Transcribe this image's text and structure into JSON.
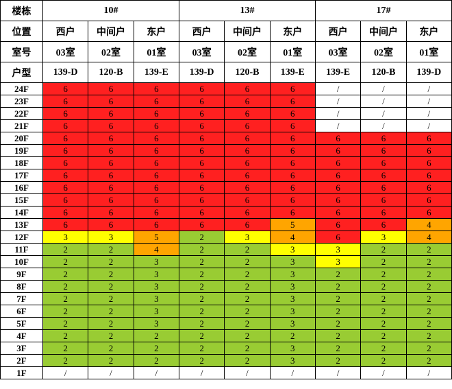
{
  "chart_data": {
    "type": "heatmap",
    "title": "",
    "corner_labels": [
      "楼栋",
      "位置",
      "室号",
      "户型"
    ],
    "buildings": [
      "10#",
      "13#",
      "17#"
    ],
    "positions": [
      "西户",
      "中间户",
      "东户",
      "西户",
      "中间户",
      "东户",
      "西户",
      "中间户",
      "东户"
    ],
    "rooms": [
      "03室",
      "02室",
      "01室",
      "03室",
      "02室",
      "01室",
      "03室",
      "02室",
      "01室"
    ],
    "unit_types": [
      "139-D",
      "120-B",
      "139-E",
      "139-D",
      "120-B",
      "139-E",
      "139-E",
      "120-B",
      "139-D"
    ],
    "palette": {
      "red": "#ff2020",
      "orange": "#ffa500",
      "yellow": "#ffff00",
      "green": "#99cc33",
      "white": "#ffffff"
    },
    "rows": [
      {
        "floor": "24F",
        "values": [
          "6",
          "6",
          "6",
          "6",
          "6",
          "6",
          "/",
          "/",
          "/"
        ],
        "colors": [
          "red",
          "red",
          "red",
          "red",
          "red",
          "red",
          "white",
          "white",
          "white"
        ]
      },
      {
        "floor": "23F",
        "values": [
          "6",
          "6",
          "6",
          "6",
          "6",
          "6",
          "/",
          "/",
          "/"
        ],
        "colors": [
          "red",
          "red",
          "red",
          "red",
          "red",
          "red",
          "white",
          "white",
          "white"
        ]
      },
      {
        "floor": "22F",
        "values": [
          "6",
          "6",
          "6",
          "6",
          "6",
          "6",
          "/",
          "/",
          "/"
        ],
        "colors": [
          "red",
          "red",
          "red",
          "red",
          "red",
          "red",
          "white",
          "white",
          "white"
        ]
      },
      {
        "floor": "21F",
        "values": [
          "6",
          "6",
          "6",
          "6",
          "6",
          "6",
          "/",
          "/",
          "/"
        ],
        "colors": [
          "red",
          "red",
          "red",
          "red",
          "red",
          "red",
          "white",
          "white",
          "white"
        ]
      },
      {
        "floor": "20F",
        "values": [
          "6",
          "6",
          "6",
          "6",
          "6",
          "6",
          "6",
          "6",
          "6"
        ],
        "colors": [
          "red",
          "red",
          "red",
          "red",
          "red",
          "red",
          "red",
          "red",
          "red"
        ]
      },
      {
        "floor": "19F",
        "values": [
          "6",
          "6",
          "6",
          "6",
          "6",
          "6",
          "6",
          "6",
          "6"
        ],
        "colors": [
          "red",
          "red",
          "red",
          "red",
          "red",
          "red",
          "red",
          "red",
          "red"
        ]
      },
      {
        "floor": "18F",
        "values": [
          "6",
          "6",
          "6",
          "6",
          "6",
          "6",
          "6",
          "6",
          "6"
        ],
        "colors": [
          "red",
          "red",
          "red",
          "red",
          "red",
          "red",
          "red",
          "red",
          "red"
        ]
      },
      {
        "floor": "17F",
        "values": [
          "6",
          "6",
          "6",
          "6",
          "6",
          "6",
          "6",
          "6",
          "6"
        ],
        "colors": [
          "red",
          "red",
          "red",
          "red",
          "red",
          "red",
          "red",
          "red",
          "red"
        ]
      },
      {
        "floor": "16F",
        "values": [
          "6",
          "6",
          "6",
          "6",
          "6",
          "6",
          "6",
          "6",
          "6"
        ],
        "colors": [
          "red",
          "red",
          "red",
          "red",
          "red",
          "red",
          "red",
          "red",
          "red"
        ]
      },
      {
        "floor": "15F",
        "values": [
          "6",
          "6",
          "6",
          "6",
          "6",
          "6",
          "6",
          "6",
          "6"
        ],
        "colors": [
          "red",
          "red",
          "red",
          "red",
          "red",
          "red",
          "red",
          "red",
          "red"
        ]
      },
      {
        "floor": "14F",
        "values": [
          "6",
          "6",
          "6",
          "6",
          "6",
          "6",
          "6",
          "6",
          "6"
        ],
        "colors": [
          "red",
          "red",
          "red",
          "red",
          "red",
          "red",
          "red",
          "red",
          "red"
        ]
      },
      {
        "floor": "13F",
        "values": [
          "6",
          "6",
          "6",
          "6",
          "6",
          "5",
          "6",
          "6",
          "4"
        ],
        "colors": [
          "red",
          "red",
          "red",
          "red",
          "red",
          "orange",
          "red",
          "red",
          "orange"
        ]
      },
      {
        "floor": "12F",
        "values": [
          "3",
          "3",
          "5",
          "2",
          "3",
          "4",
          "6",
          "3",
          "4"
        ],
        "colors": [
          "yellow",
          "yellow",
          "orange",
          "green",
          "yellow",
          "orange",
          "red",
          "yellow",
          "orange"
        ]
      },
      {
        "floor": "11F",
        "values": [
          "2",
          "2",
          "4",
          "2",
          "2",
          "3",
          "3",
          "2",
          "2"
        ],
        "colors": [
          "green",
          "green",
          "orange",
          "green",
          "green",
          "yellow",
          "yellow",
          "green",
          "green"
        ]
      },
      {
        "floor": "10F",
        "values": [
          "2",
          "2",
          "3",
          "2",
          "2",
          "3",
          "3",
          "2",
          "2"
        ],
        "colors": [
          "green",
          "green",
          "green",
          "green",
          "green",
          "green",
          "yellow",
          "green",
          "green"
        ]
      },
      {
        "floor": "9F",
        "values": [
          "2",
          "2",
          "3",
          "2",
          "2",
          "3",
          "2",
          "2",
          "2"
        ],
        "colors": [
          "green",
          "green",
          "green",
          "green",
          "green",
          "green",
          "green",
          "green",
          "green"
        ]
      },
      {
        "floor": "8F",
        "values": [
          "2",
          "2",
          "3",
          "2",
          "2",
          "3",
          "2",
          "2",
          "2"
        ],
        "colors": [
          "green",
          "green",
          "green",
          "green",
          "green",
          "green",
          "green",
          "green",
          "green"
        ]
      },
      {
        "floor": "7F",
        "values": [
          "2",
          "2",
          "3",
          "2",
          "2",
          "3",
          "2",
          "2",
          "2"
        ],
        "colors": [
          "green",
          "green",
          "green",
          "green",
          "green",
          "green",
          "green",
          "green",
          "green"
        ]
      },
      {
        "floor": "6F",
        "values": [
          "2",
          "2",
          "3",
          "2",
          "2",
          "3",
          "2",
          "2",
          "2"
        ],
        "colors": [
          "green",
          "green",
          "green",
          "green",
          "green",
          "green",
          "green",
          "green",
          "green"
        ]
      },
      {
        "floor": "5F",
        "values": [
          "2",
          "2",
          "3",
          "2",
          "2",
          "3",
          "2",
          "2",
          "2"
        ],
        "colors": [
          "green",
          "green",
          "green",
          "green",
          "green",
          "green",
          "green",
          "green",
          "green"
        ]
      },
      {
        "floor": "4F",
        "values": [
          "2",
          "2",
          "2",
          "2",
          "2",
          "2",
          "2",
          "2",
          "2"
        ],
        "colors": [
          "green",
          "green",
          "green",
          "green",
          "green",
          "green",
          "green",
          "green",
          "green"
        ]
      },
      {
        "floor": "3F",
        "values": [
          "2",
          "2",
          "2",
          "2",
          "2",
          "3",
          "2",
          "2",
          "2"
        ],
        "colors": [
          "green",
          "green",
          "green",
          "green",
          "green",
          "green",
          "green",
          "green",
          "green"
        ]
      },
      {
        "floor": "2F",
        "values": [
          "2",
          "2",
          "2",
          "2",
          "2",
          "3",
          "2",
          "2",
          "2"
        ],
        "colors": [
          "green",
          "green",
          "green",
          "green",
          "green",
          "green",
          "green",
          "green",
          "green"
        ]
      },
      {
        "floor": "1F",
        "values": [
          "/",
          "/",
          "/",
          "/",
          "/",
          "/",
          "/",
          "/",
          "/"
        ],
        "colors": [
          "white",
          "white",
          "white",
          "white",
          "white",
          "white",
          "white",
          "white",
          "white"
        ]
      }
    ]
  }
}
